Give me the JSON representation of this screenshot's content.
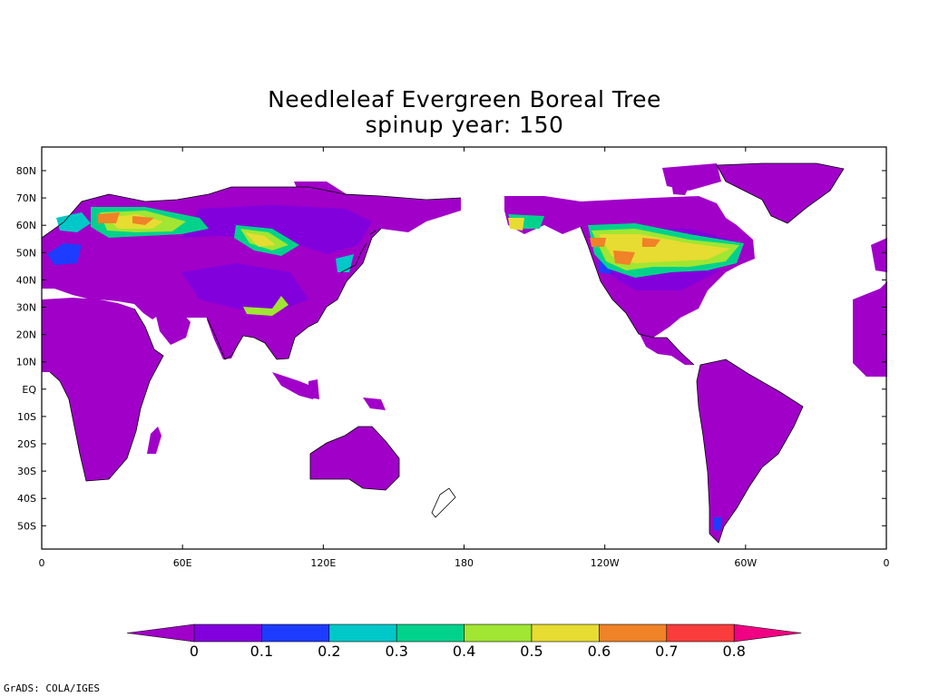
{
  "title": "Needleleaf Evergreen Boreal Tree",
  "subtitle": "spinup year: 150",
  "credit": "GrADS: COLA/IGES",
  "map": {
    "projection": "cylindrical equidistant",
    "lon_range": [
      0,
      360
    ],
    "lat_range": [
      -58,
      90
    ],
    "lat_ticks": [
      "80N",
      "70N",
      "60N",
      "50N",
      "40N",
      "30N",
      "20N",
      "10N",
      "EQ",
      "10S",
      "20S",
      "30S",
      "40S",
      "50S"
    ],
    "lon_ticks": [
      "0",
      "60E",
      "120E",
      "180",
      "120W",
      "60W",
      "0"
    ]
  },
  "colorbar": {
    "labels": [
      "0",
      "0.1",
      "0.2",
      "0.3",
      "0.4",
      "0.5",
      "0.6",
      "0.7",
      "0.8"
    ],
    "colors": [
      "#a000c8",
      "#8200dc",
      "#1e3cff",
      "#00c8c8",
      "#00d28c",
      "#a0e632",
      "#e6dc32",
      "#f08228",
      "#fa3c3c",
      "#f00082"
    ]
  }
}
